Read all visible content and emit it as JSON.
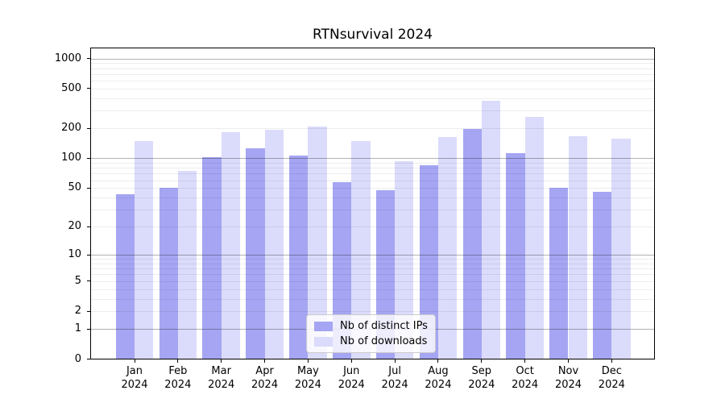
{
  "chart_data": {
    "type": "bar",
    "title": "RTNsurvival 2024",
    "categories": [
      "Jan 2024",
      "Feb 2024",
      "Mar 2024",
      "Apr 2024",
      "May 2024",
      "Jun 2024",
      "Jul 2024",
      "Aug 2024",
      "Sep 2024",
      "Oct 2024",
      "Nov 2024",
      "Dec 2024"
    ],
    "series": [
      {
        "name": "Nb of distinct IPs",
        "color": "#a5a5f3",
        "values": [
          43,
          50,
          101,
          125,
          105,
          57,
          47,
          85,
          194,
          112,
          50,
          45
        ]
      },
      {
        "name": "Nb of downloads",
        "color": "#dbdbfb",
        "values": [
          148,
          74,
          182,
          190,
          208,
          149,
          93,
          161,
          375,
          258,
          164,
          156
        ]
      }
    ],
    "xlabel": "",
    "ylabel": "",
    "yscale": "log1p",
    "y_ticks": [
      0,
      1,
      2,
      5,
      10,
      20,
      50,
      100,
      200,
      500,
      1000
    ],
    "ylim": [
      0,
      1270
    ],
    "grid": "on",
    "legend_position": "lower center",
    "colors": {
      "background": "#ffffff",
      "axis": "#000000",
      "grid_minor": "rgba(0,0,0,0.07)",
      "grid_major": "rgba(0,0,0,0.30)"
    }
  }
}
